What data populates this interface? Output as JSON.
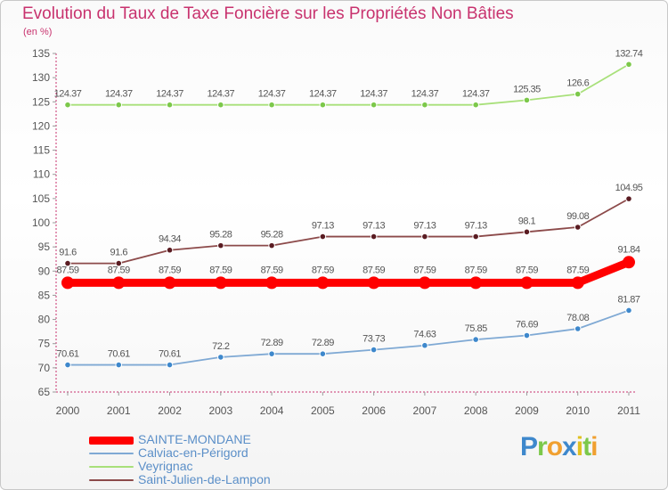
{
  "chart_data": {
    "type": "line",
    "title": "Evolution du Taux de Taxe Foncière sur les Propriétés Non Bâties",
    "unit": "(en %)",
    "x": [
      "2000",
      "2001",
      "2002",
      "2003",
      "2004",
      "2005",
      "2006",
      "2007",
      "2008",
      "2009",
      "2010",
      "2011"
    ],
    "ylim": [
      65,
      135
    ],
    "yticks": [
      65,
      70,
      75,
      80,
      85,
      90,
      95,
      100,
      105,
      110,
      115,
      120,
      125,
      130,
      135
    ],
    "grid": false,
    "legend_position": "bottom-left",
    "series": [
      {
        "name": "SAINTE-MONDANE",
        "color": "#ff0000",
        "emphasis": true,
        "values": [
          87.59,
          87.59,
          87.59,
          87.59,
          87.59,
          87.59,
          87.59,
          87.59,
          87.59,
          87.59,
          87.59,
          91.84
        ],
        "labels": [
          "87.59",
          "87.59",
          "87.59",
          "87.59",
          "87.59",
          "87.59",
          "87.59",
          "87.59",
          "87.59",
          "87.59",
          "87.59",
          "91.84"
        ]
      },
      {
        "name": "Calviac-en-Périgord",
        "color": "#7fa9d4",
        "marker_color": "#3e88cc",
        "values": [
          70.61,
          70.61,
          70.61,
          72.2,
          72.89,
          72.89,
          73.73,
          74.63,
          75.85,
          76.69,
          78.08,
          81.87
        ],
        "labels": [
          "70.61",
          "70.61",
          "70.61",
          "72.2",
          "72.89",
          "72.89",
          "73.73",
          "74.63",
          "75.85",
          "76.69",
          "78.08",
          "81.87"
        ]
      },
      {
        "name": "Veyrignac",
        "color": "#a8e07a",
        "marker_color": "#7cc84a",
        "values": [
          124.37,
          124.37,
          124.37,
          124.37,
          124.37,
          124.37,
          124.37,
          124.37,
          124.37,
          125.35,
          126.6,
          132.74
        ],
        "labels": [
          "124.37",
          "124.37",
          "124.37",
          "124.37",
          "124.37",
          "124.37",
          "124.37",
          "124.37",
          "124.37",
          "125.35",
          "126.6",
          "132.74"
        ]
      },
      {
        "name": "Saint-Julien-de-Lampon",
        "color": "#8c4a4a",
        "marker_color": "#5a1c22",
        "values": [
          91.6,
          91.6,
          94.34,
          95.28,
          95.28,
          97.13,
          97.13,
          97.13,
          97.13,
          98.1,
          99.08,
          104.95
        ],
        "labels": [
          "91.6",
          "91.6",
          "94.34",
          "95.28",
          "95.28",
          "97.13",
          "97.13",
          "97.13",
          "97.13",
          "98.1",
          "99.08",
          "104.95"
        ]
      }
    ]
  },
  "legend": [
    {
      "label": "SAINTE-MONDANE",
      "color": "#ff0000"
    },
    {
      "label": "Calviac-en-Périgord",
      "color": "#7fa9d4"
    },
    {
      "label": "Veyrignac",
      "color": "#a8e07a"
    },
    {
      "label": "Saint-Julien-de-Lampon",
      "color": "#8c4a4a"
    }
  ],
  "logo": {
    "letters": [
      "P",
      "r",
      "o",
      "x",
      "i",
      "t",
      "i"
    ],
    "colors": [
      "#3e88cc",
      "#7cc84a",
      "#f0a030",
      "#3e88cc",
      "#e0c020",
      "#7cc84a",
      "#f0a030"
    ]
  }
}
